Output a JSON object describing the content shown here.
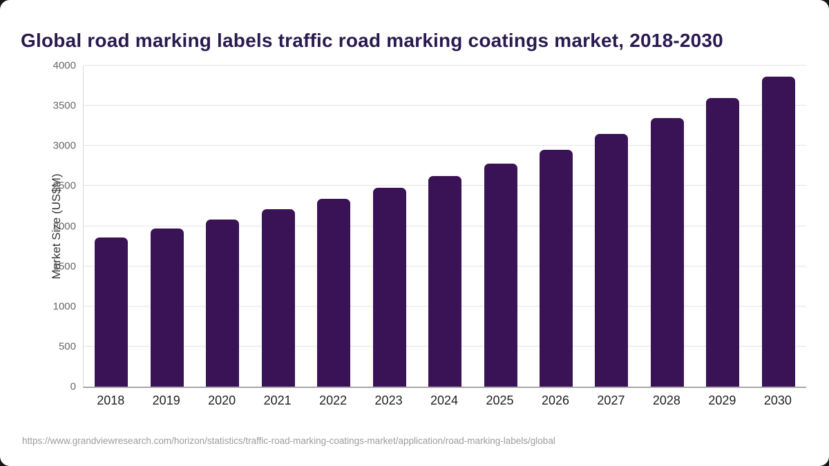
{
  "header": {
    "title": "Global road marking labels traffic road marking coatings market, 2018-2030"
  },
  "footer": {
    "source_url": "https://www.grandviewresearch.com/horizon/statistics/traffic-road-marking-coatings-market/application/road-marking-labels/global"
  },
  "colors": {
    "bar": "#3A1356",
    "title": "#2A1A4F",
    "grid": "#e4e4e4",
    "axis": "#a6a6a6",
    "y_tick_label": "#666666",
    "x_tick_label": "#1f1f1f",
    "y_axis_title": "#333333",
    "source_text": "#9b9b9b",
    "background": "#ffffff"
  },
  "chart_data": {
    "type": "bar",
    "title": "Global road marking labels traffic road marking coatings market, 2018-2030",
    "xlabel": "",
    "ylabel": "Market Size (US$M)",
    "categories": [
      "2018",
      "2019",
      "2020",
      "2021",
      "2022",
      "2023",
      "2024",
      "2025",
      "2026",
      "2027",
      "2028",
      "2029",
      "2030"
    ],
    "values": [
      1860,
      1970,
      2080,
      2210,
      2340,
      2480,
      2620,
      2780,
      2950,
      3150,
      3350,
      3600,
      3860
    ],
    "ylim": [
      0,
      4000
    ],
    "ytick_step": 500,
    "grid": true,
    "legend": false,
    "bar_corner_radius": "rounded-top"
  }
}
